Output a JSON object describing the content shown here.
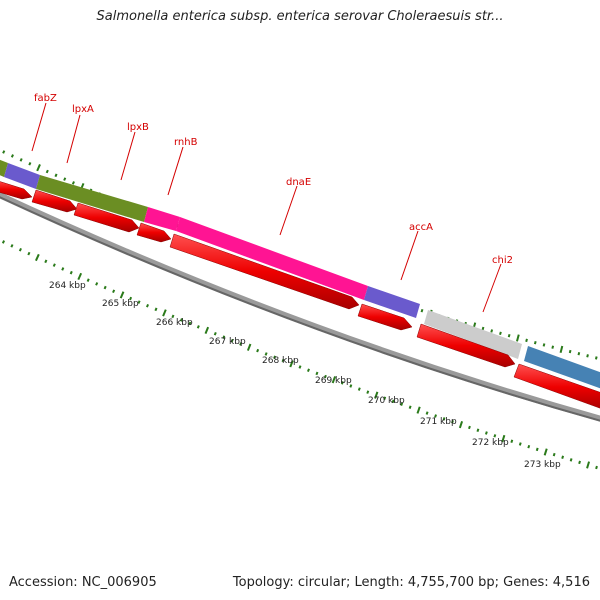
{
  "title": "Salmonella enterica subsp. enterica serovar Choleraesuis str...",
  "accession": "Accession: NC_006905",
  "stats": "Topology: circular; Length: 4,755,700 bp; Genes: 4,516",
  "gene_labels": [
    {
      "label": "fabZ"
    },
    {
      "label": "lpxA"
    },
    {
      "label": "lpxB"
    },
    {
      "label": "rnhB"
    },
    {
      "label": "dnaE"
    },
    {
      "label": "accA"
    },
    {
      "label": "chi2"
    }
  ],
  "scale_labels": [
    "264 kbp",
    "265 kbp",
    "266 kbp",
    "267 kbp",
    "268 kbp",
    "269 kbp",
    "270 kbp",
    "271 kbp",
    "272 kbp",
    "273 kbp"
  ],
  "colors": {
    "gene_arrow": "#ee0000",
    "olive": "#6b8e23",
    "purple": "#6a5acd",
    "magenta": "#ff1493",
    "grey": "#c8c8c8",
    "steelblue": "#4682b4",
    "backbone": "#7a7a7a",
    "ticks": "#2a7a1a",
    "label_red": "#d40000"
  }
}
